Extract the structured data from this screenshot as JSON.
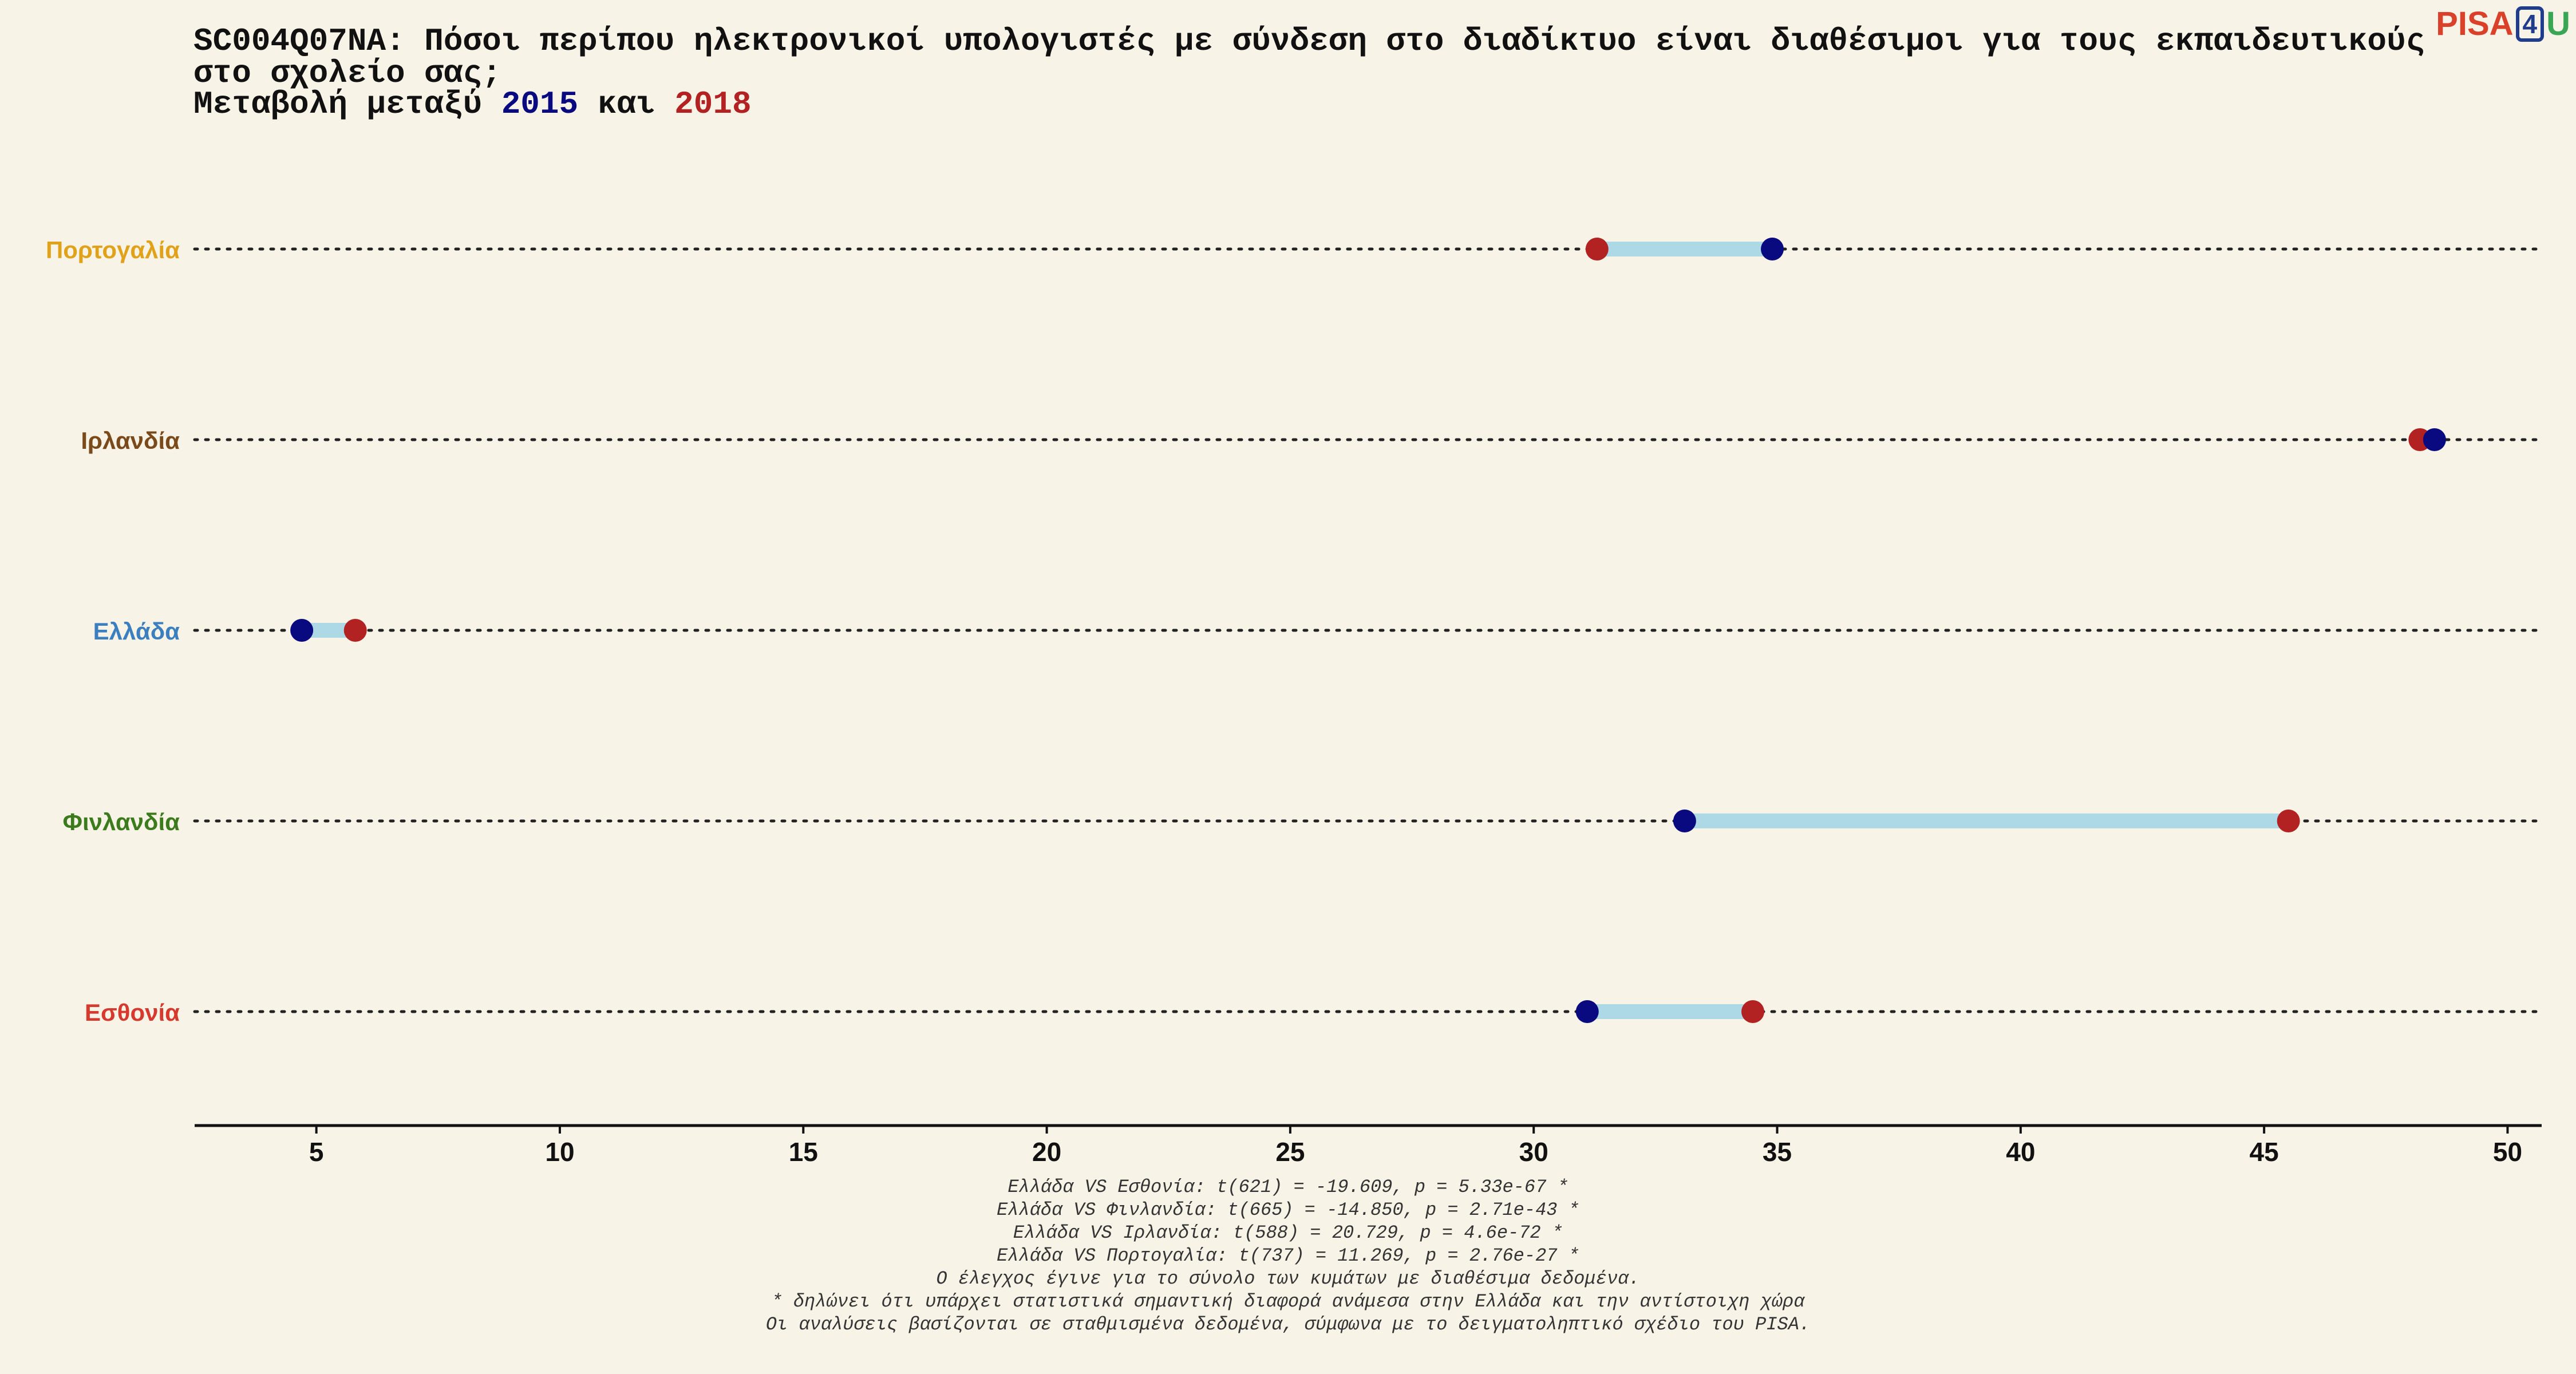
{
  "title": "SC004Q07NA: Πόσοι περίπου ηλεκτρονικοί υπολογιστές με σύνδεση στο διαδίκτυο είναι διαθέσιμοι για τους εκπαιδευτικούς στο σχολείο σας;",
  "subtitle": {
    "prefix": "Μεταβολή μεταξύ ",
    "year1": "2015",
    "mid": " και ",
    "year2": "2018"
  },
  "logo": {
    "part1": "PISA",
    "part2": "4",
    "part3": "U"
  },
  "colors": {
    "year1": "#0a0a80",
    "year2": "#b22222",
    "range": "#add8e6",
    "logo_red": "#d9412b",
    "logo_blue": "#1f3d8c",
    "logo_green": "#3aa655"
  },
  "chart_data": {
    "type": "dumbbell",
    "x_range": [
      2.5,
      50.7
    ],
    "x_ticks": [
      5,
      10,
      15,
      20,
      25,
      30,
      35,
      40,
      45,
      50
    ],
    "grid": false,
    "series": [
      {
        "name": "2015",
        "color": "#0a0a80"
      },
      {
        "name": "2018",
        "color": "#b22222"
      }
    ],
    "categories": [
      {
        "label": "Πορτογαλία",
        "color": "#e0a21a",
        "v2015": 34.9,
        "v2018": 31.3
      },
      {
        "label": "Ιρλανδία",
        "color": "#7a4a1a",
        "v2015": 48.5,
        "v2018": 48.2
      },
      {
        "label": "Ελλάδα",
        "color": "#3b7fbf",
        "v2015": 4.7,
        "v2018": 5.8
      },
      {
        "label": "Φινλανδία",
        "color": "#3c7a1e",
        "v2015": 33.1,
        "v2018": 45.5
      },
      {
        "label": "Εσθονία",
        "color": "#d63a2e",
        "v2015": 31.1,
        "v2018": 34.5
      }
    ]
  },
  "notes": [
    "Ελλάδα VS Εσθονία: t(621) = -19.609, p = 5.33e-67 *",
    "Ελλάδα VS Φινλανδία: t(665) = -14.850, p = 2.71e-43 *",
    "Ελλάδα VS Ιρλανδία: t(588) = 20.729, p = 4.6e-72 *",
    "Ελλάδα VS Πορτογαλία: t(737) = 11.269, p = 2.76e-27 *",
    "Ο έλεγχος έγινε για το σύνολο των κυμάτων με διαθέσιμα δεδομένα.",
    "* δηλώνει ότι υπάρχει στατιστικά σημαντική διαφορά ανάμεσα στην Ελλάδα και την αντίστοιχη χώρα",
    "Οι αναλύσεις βασίζονται σε σταθμισμένα δεδομένα, σύμφωνα με το δειγματοληπτικό σχέδιο του PISA."
  ]
}
